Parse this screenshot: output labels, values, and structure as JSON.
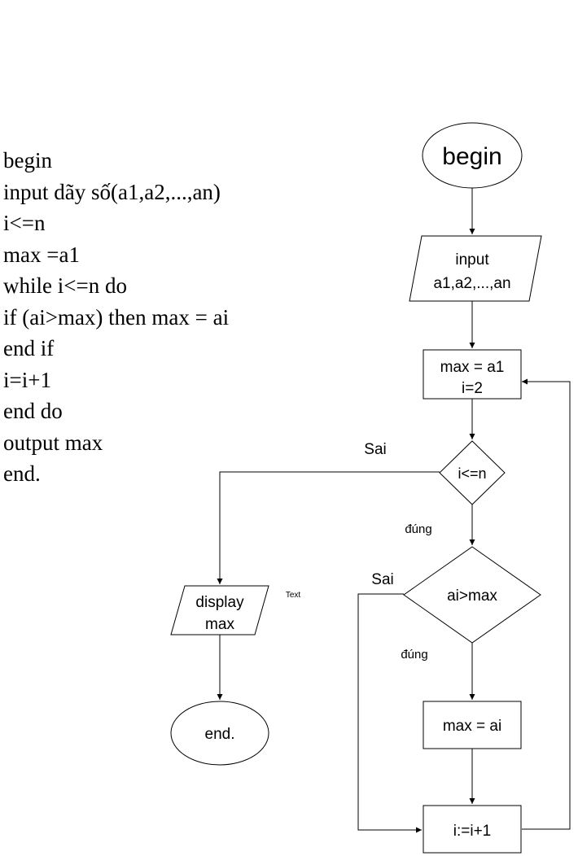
{
  "pseudocode": [
    "begin",
    "input dãy số(a1,a2,...,an)",
    "i<=n",
    "max =a1",
    "while i<=n do",
    "if (ai>max) then max = ai",
    "end if",
    "i=i+1",
    "end do",
    "output max",
    "end."
  ],
  "flowchart": {
    "begin": "begin",
    "input_line1": "input",
    "input_line2": "a1,a2,...,an",
    "init_line1": "max = a1",
    "init_line2": "i=2",
    "cond_loop": "i<=n",
    "cond_max": "ai>max",
    "assign_max": "max = ai",
    "increment": "i:=i+1",
    "display_line1": "display",
    "display_line2": "max",
    "end": "end.",
    "placeholder_text": "Text",
    "labels": {
      "loop_false": "Sai",
      "loop_true": "đúng",
      "max_false": "Sai",
      "max_true": "đúng"
    }
  }
}
